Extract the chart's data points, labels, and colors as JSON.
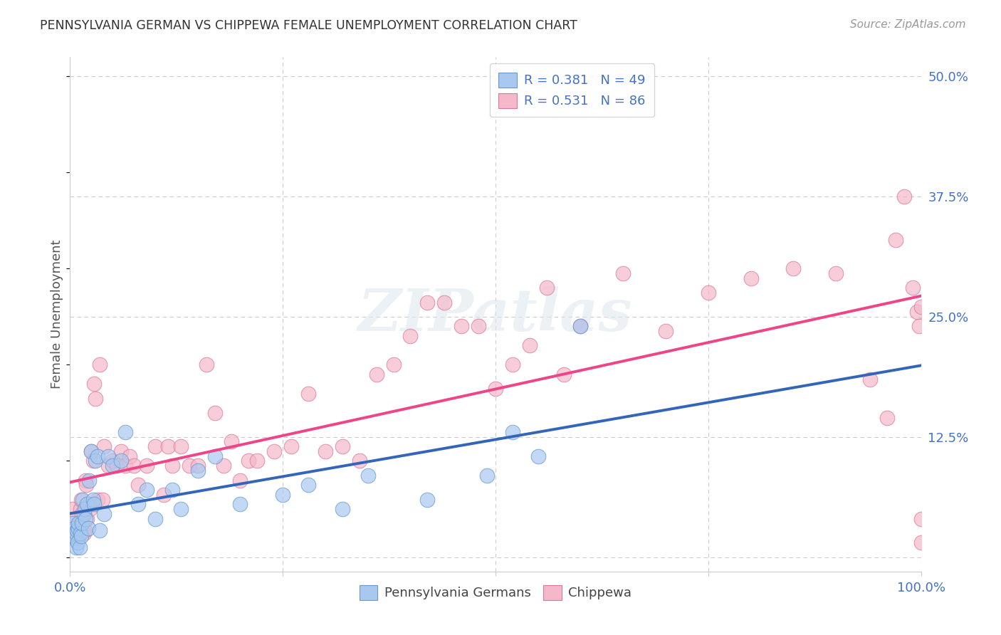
{
  "title": "PENNSYLVANIA GERMAN VS CHIPPEWA FEMALE UNEMPLOYMENT CORRELATION CHART",
  "source": "Source: ZipAtlas.com",
  "ylabel": "Female Unemployment",
  "xlim": [
    0.0,
    1.0
  ],
  "ylim": [
    -0.02,
    0.52
  ],
  "ylim_data": [
    0.0,
    0.5
  ],
  "xticks": [
    0.0,
    0.25,
    0.5,
    0.75,
    1.0
  ],
  "xtick_labels": [
    "0.0%",
    "",
    "",
    "",
    "100.0%"
  ],
  "yticks": [
    0.0,
    0.125,
    0.25,
    0.375,
    0.5
  ],
  "ytick_labels": [
    "",
    "12.5%",
    "25.0%",
    "37.5%",
    "50.0%"
  ],
  "pg_fill_color": "#a8c8f0",
  "pg_edge_color": "#6699cc",
  "ch_fill_color": "#f5b8cb",
  "ch_edge_color": "#dd7799",
  "pg_line_color": "#3366bb",
  "ch_line_color": "#ee4488",
  "R_pg": 0.381,
  "N_pg": 49,
  "R_ch": 0.531,
  "N_ch": 86,
  "pg_x": [
    0.003,
    0.004,
    0.005,
    0.006,
    0.007,
    0.007,
    0.008,
    0.009,
    0.01,
    0.01,
    0.011,
    0.012,
    0.013,
    0.014,
    0.015,
    0.016,
    0.017,
    0.018,
    0.02,
    0.021,
    0.022,
    0.025,
    0.027,
    0.028,
    0.03,
    0.032,
    0.035,
    0.04,
    0.045,
    0.05,
    0.06,
    0.065,
    0.08,
    0.09,
    0.1,
    0.12,
    0.13,
    0.15,
    0.17,
    0.2,
    0.25,
    0.28,
    0.32,
    0.35,
    0.42,
    0.49,
    0.52,
    0.55,
    0.6
  ],
  "pg_y": [
    0.035,
    0.025,
    0.03,
    0.02,
    0.01,
    0.025,
    0.028,
    0.015,
    0.03,
    0.035,
    0.01,
    0.025,
    0.022,
    0.035,
    0.06,
    0.045,
    0.05,
    0.04,
    0.055,
    0.03,
    0.08,
    0.11,
    0.06,
    0.055,
    0.1,
    0.105,
    0.028,
    0.045,
    0.105,
    0.095,
    0.1,
    0.13,
    0.055,
    0.07,
    0.04,
    0.07,
    0.05,
    0.09,
    0.105,
    0.055,
    0.065,
    0.075,
    0.05,
    0.085,
    0.06,
    0.085,
    0.13,
    0.105,
    0.24
  ],
  "ch_x": [
    0.003,
    0.004,
    0.005,
    0.006,
    0.007,
    0.008,
    0.009,
    0.01,
    0.011,
    0.012,
    0.013,
    0.014,
    0.015,
    0.016,
    0.017,
    0.018,
    0.019,
    0.02,
    0.022,
    0.023,
    0.025,
    0.027,
    0.028,
    0.03,
    0.032,
    0.035,
    0.038,
    0.04,
    0.045,
    0.05,
    0.055,
    0.06,
    0.065,
    0.07,
    0.075,
    0.08,
    0.09,
    0.1,
    0.11,
    0.115,
    0.12,
    0.13,
    0.14,
    0.15,
    0.16,
    0.17,
    0.18,
    0.19,
    0.2,
    0.21,
    0.22,
    0.24,
    0.26,
    0.28,
    0.3,
    0.32,
    0.34,
    0.36,
    0.38,
    0.4,
    0.42,
    0.44,
    0.46,
    0.48,
    0.5,
    0.52,
    0.54,
    0.56,
    0.58,
    0.6,
    0.65,
    0.7,
    0.75,
    0.8,
    0.85,
    0.9,
    0.94,
    0.96,
    0.97,
    0.98,
    0.99,
    0.995,
    0.998,
    1.0,
    1.0,
    1.0
  ],
  "ch_y": [
    0.05,
    0.035,
    0.028,
    0.04,
    0.03,
    0.02,
    0.025,
    0.022,
    0.035,
    0.05,
    0.06,
    0.045,
    0.03,
    0.025,
    0.028,
    0.08,
    0.075,
    0.04,
    0.055,
    0.05,
    0.11,
    0.1,
    0.18,
    0.165,
    0.06,
    0.2,
    0.06,
    0.115,
    0.095,
    0.1,
    0.095,
    0.11,
    0.095,
    0.105,
    0.095,
    0.075,
    0.095,
    0.115,
    0.065,
    0.115,
    0.095,
    0.115,
    0.095,
    0.095,
    0.2,
    0.15,
    0.095,
    0.12,
    0.08,
    0.1,
    0.1,
    0.11,
    0.115,
    0.17,
    0.11,
    0.115,
    0.1,
    0.19,
    0.2,
    0.23,
    0.265,
    0.265,
    0.24,
    0.24,
    0.175,
    0.2,
    0.22,
    0.28,
    0.19,
    0.24,
    0.295,
    0.235,
    0.275,
    0.29,
    0.3,
    0.295,
    0.185,
    0.145,
    0.33,
    0.375,
    0.28,
    0.255,
    0.24,
    0.26,
    0.04,
    0.015
  ],
  "watermark_text": "ZIPatlas",
  "background_color": "#ffffff",
  "grid_color": "#cccccc",
  "axis_label_color": "#4472c4",
  "text_color": "#333333",
  "ylabel_color": "#555555"
}
